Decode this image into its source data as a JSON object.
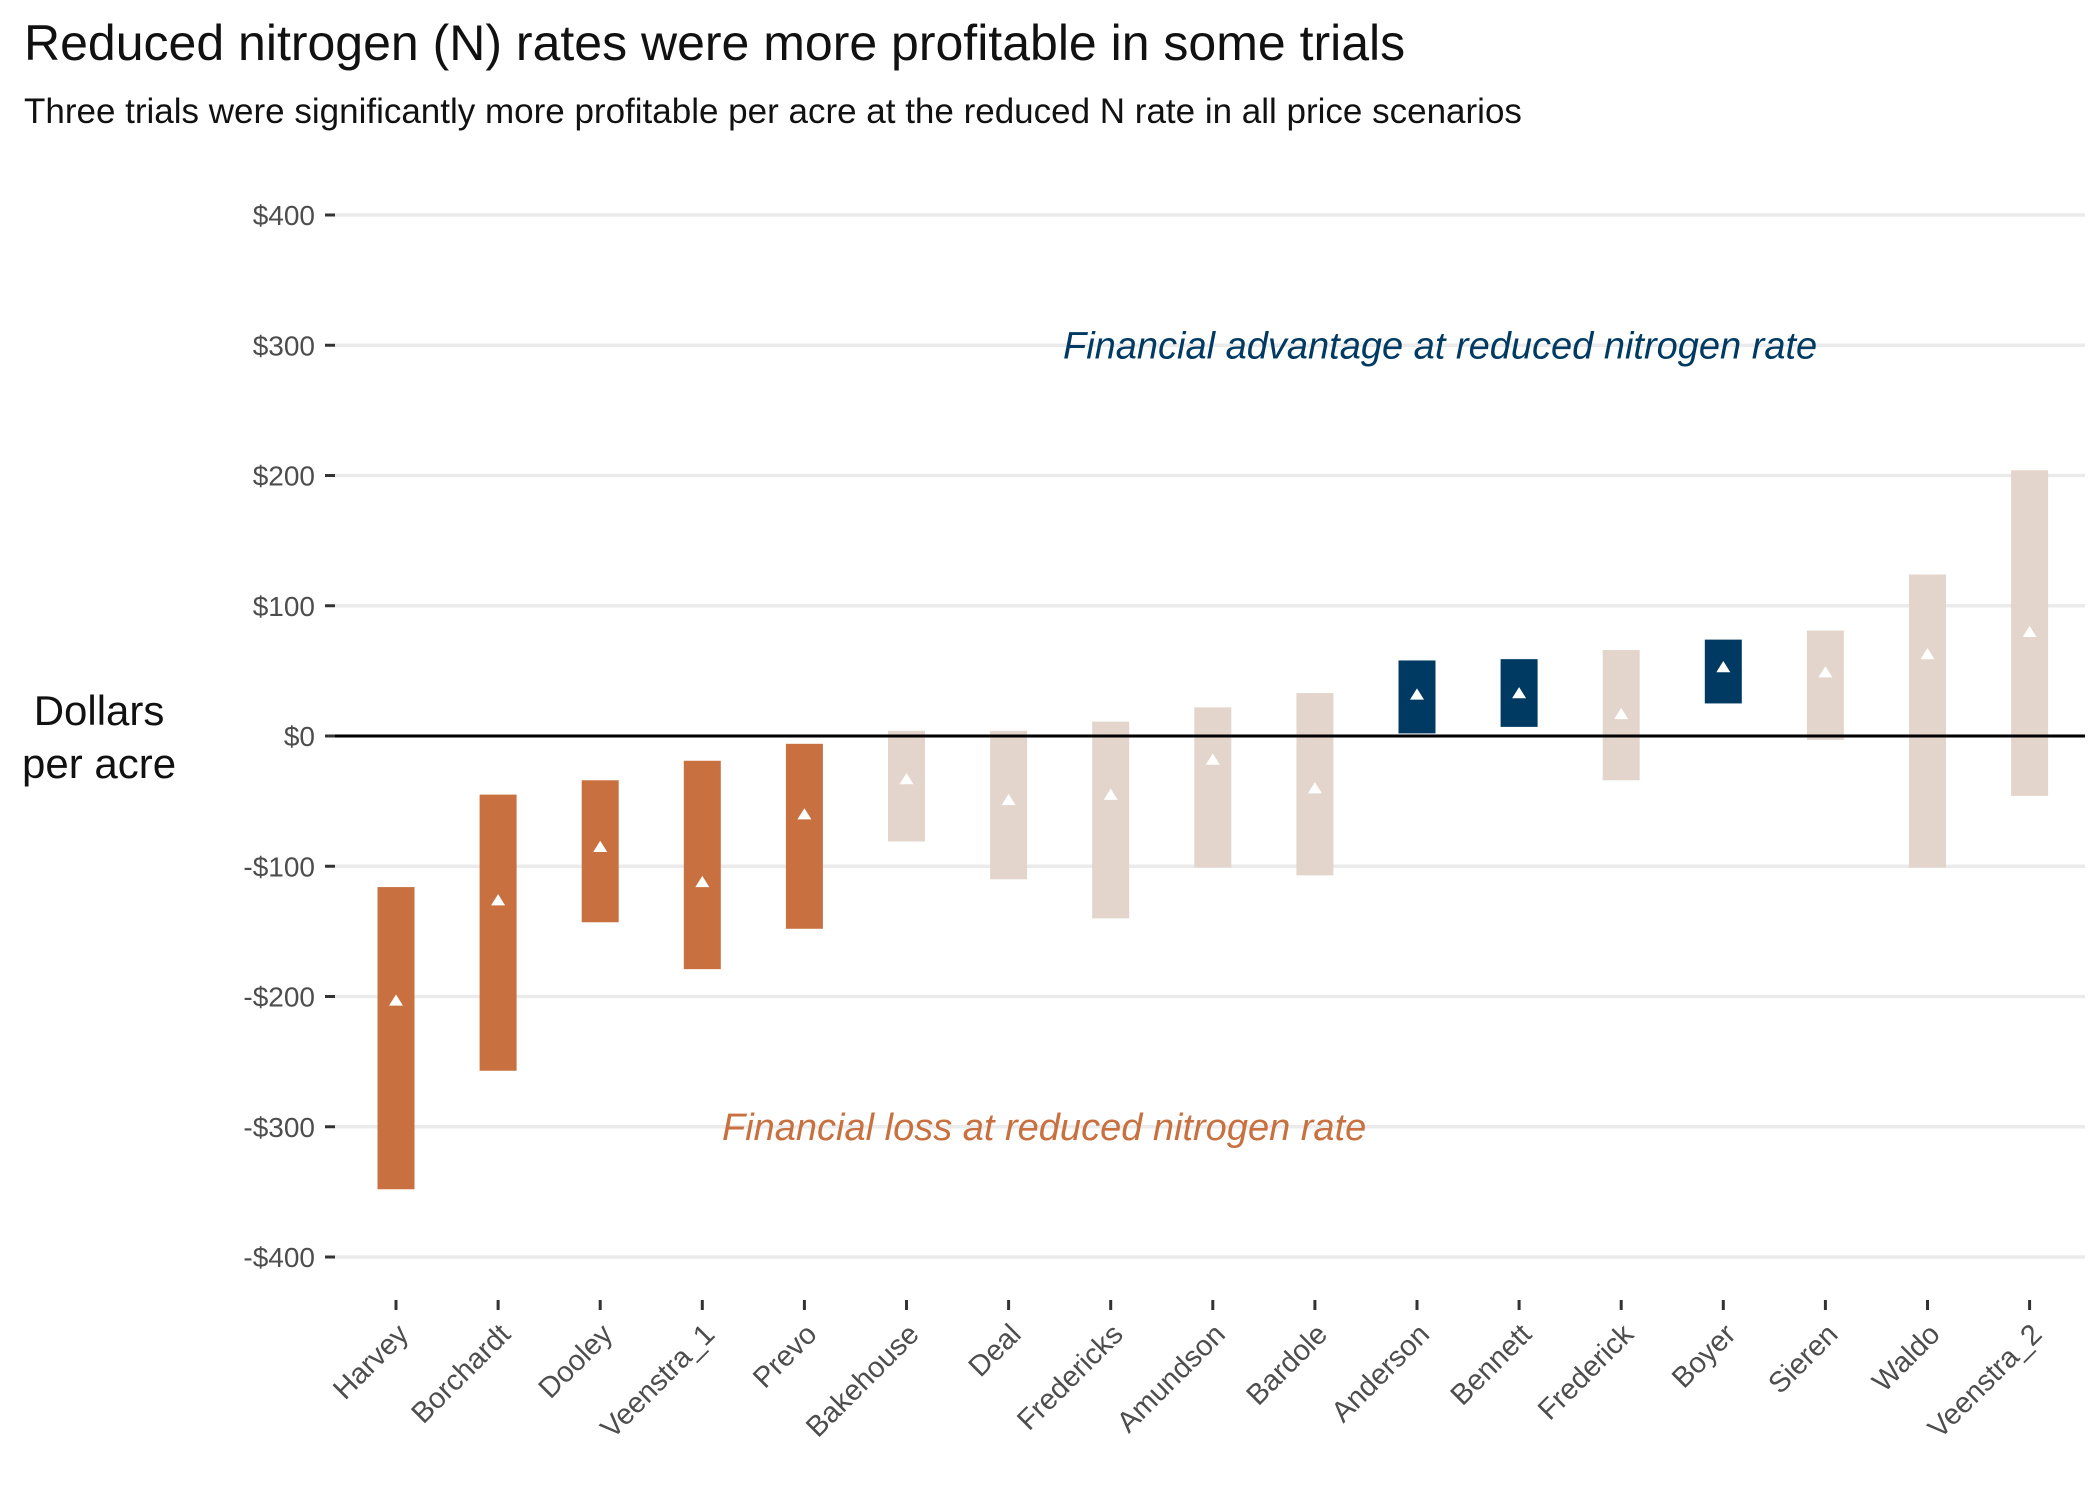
{
  "chart_data": {
    "type": "range-bar",
    "title": "Reduced nitrogen (N) rates were more profitable in some trials",
    "subtitle": "Three trials were significantly more profitable per acre at the reduced N rate in all price scenarios",
    "ylabel": "Dollars\nper acre",
    "xlabel": "",
    "ylim": [
      -420,
      400
    ],
    "ytick_values": [
      400,
      300,
      200,
      100,
      0,
      -100,
      -200,
      -300,
      -400
    ],
    "ytick_labels": [
      "$400",
      "$300",
      "$200",
      "$100",
      "$0",
      "-$100",
      "-$200",
      "-$300",
      "-$400"
    ],
    "grid": true,
    "colors": {
      "loss": "#c8703f",
      "neutral": "#e3d5cb",
      "gain": "#003a63",
      "marker": "#ffffff",
      "zero_line": "#000000",
      "grid": "#ebebeb",
      "annotation_gain": "#003a63",
      "annotation_loss": "#c8703f"
    },
    "annotations": {
      "gain": {
        "text": "Financial advantage at reduced nitrogen rate",
        "y": 300
      },
      "loss": {
        "text": "Financial loss at reduced nitrogen rate",
        "y": -300
      }
    },
    "categories": [
      "Harvey",
      "Borchardt",
      "Dooley",
      "Veenstra_1",
      "Prevo",
      "Bakehouse",
      "Deal",
      "Fredericks",
      "Amundson",
      "Bardole",
      "Anderson",
      "Bennett",
      "Frederick",
      "Boyer",
      "Sieren",
      "Waldo",
      "Veenstra_2"
    ],
    "low": [
      -348,
      -257,
      -143,
      -179,
      -148,
      -81,
      -110,
      -140,
      -101,
      -107,
      2,
      7,
      -34,
      25,
      -3,
      -101,
      -46
    ],
    "high": [
      -116,
      -45,
      -34,
      -19,
      -6,
      4,
      4,
      11,
      22,
      33,
      58,
      59,
      66,
      74,
      81,
      124,
      204
    ],
    "mid": [
      -203,
      -126,
      -85,
      -112,
      -60,
      -33,
      -49,
      -45,
      -18,
      -40,
      32,
      33,
      17,
      53,
      49,
      63,
      80
    ],
    "group": [
      "loss",
      "loss",
      "loss",
      "loss",
      "loss",
      "neutral",
      "neutral",
      "neutral",
      "neutral",
      "neutral",
      "gain",
      "gain",
      "neutral",
      "gain",
      "neutral",
      "neutral",
      "neutral"
    ]
  }
}
